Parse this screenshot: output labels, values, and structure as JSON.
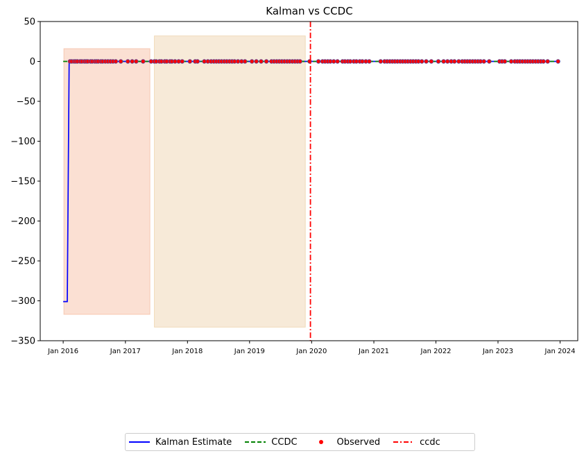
{
  "chart_data": {
    "type": "line",
    "title": "Kalman vs CCDC",
    "xlabel": "",
    "ylabel": "",
    "ylim": [
      -350,
      50
    ],
    "xlim": [
      "2015-08-19",
      "2024-04-14"
    ],
    "y_ticks": [
      50,
      0,
      -50,
      -100,
      -150,
      -200,
      -250,
      -300,
      -350
    ],
    "y_tick_labels": [
      "50",
      "0",
      "−50",
      "−100",
      "−150",
      "−200",
      "−250",
      "−300",
      "−350"
    ],
    "x_ticks": [
      "2016-01-01",
      "2017-01-01",
      "2018-01-01",
      "2019-01-01",
      "2020-01-01",
      "2021-01-01",
      "2022-01-01",
      "2023-01-01",
      "2024-01-01"
    ],
    "x_tick_labels": [
      "Jan 2016",
      "Jan 2017",
      "Jan 2018",
      "Jan 2019",
      "Jan 2020",
      "Jan 2021",
      "Jan 2022",
      "Jan 2023",
      "Jan 2024"
    ],
    "grid": false,
    "legend_position": "bottom-center",
    "series": [
      {
        "name": "Kalman Estimate",
        "style": "solid",
        "color": "#0000ff",
        "x": [
          "2016-01-01",
          "2016-01-25",
          "2016-01-25",
          "2016-02-05",
          "2024-01-01"
        ],
        "y": [
          -301,
          -301,
          -301,
          0,
          0
        ]
      },
      {
        "name": "CCDC",
        "style": "dashed",
        "color": "#008000",
        "x": [
          "2016-01-01",
          "2024-01-01"
        ],
        "y": [
          0,
          0
        ]
      }
    ],
    "observed": {
      "name": "Observed",
      "color": "#ff0000",
      "edge_color": "#5a4a9a",
      "value": 0,
      "dates": [
        "2016-02-10",
        "2016-02-20",
        "2016-03-05",
        "2016-03-15",
        "2016-03-25",
        "2016-04-10",
        "2016-04-20",
        "2016-05-05",
        "2016-05-15",
        "2016-05-25",
        "2016-06-10",
        "2016-06-20",
        "2016-07-05",
        "2016-07-15",
        "2016-07-25",
        "2016-08-10",
        "2016-08-20",
        "2016-09-05",
        "2016-09-20",
        "2016-10-05",
        "2016-10-20",
        "2016-11-05",
        "2016-12-05",
        "2017-01-15",
        "2017-02-10",
        "2017-03-05",
        "2017-04-15",
        "2017-06-01",
        "2017-06-20",
        "2017-07-01",
        "2017-07-20",
        "2017-08-01",
        "2017-08-20",
        "2017-09-01",
        "2017-09-20",
        "2017-10-01",
        "2017-10-20",
        "2017-11-10",
        "2017-12-01",
        "2018-01-15",
        "2018-02-15",
        "2018-03-01",
        "2018-04-10",
        "2018-05-01",
        "2018-05-20",
        "2018-06-05",
        "2018-06-20",
        "2018-07-05",
        "2018-07-20",
        "2018-08-05",
        "2018-08-20",
        "2018-09-05",
        "2018-09-20",
        "2018-10-05",
        "2018-10-25",
        "2018-11-15",
        "2018-12-05",
        "2019-01-15",
        "2019-02-10",
        "2019-03-10",
        "2019-04-10",
        "2019-05-10",
        "2019-05-25",
        "2019-06-10",
        "2019-06-25",
        "2019-07-10",
        "2019-07-25",
        "2019-08-10",
        "2019-08-25",
        "2019-09-10",
        "2019-09-25",
        "2019-10-10",
        "2019-10-25",
        "2019-12-20",
        "2020-02-10",
        "2020-03-05",
        "2020-03-20",
        "2020-04-05",
        "2020-04-20",
        "2020-05-10",
        "2020-06-01",
        "2020-07-01",
        "2020-07-15",
        "2020-08-01",
        "2020-08-15",
        "2020-09-05",
        "2020-09-20",
        "2020-10-10",
        "2020-10-25",
        "2020-11-15",
        "2020-12-05",
        "2021-02-10",
        "2021-03-05",
        "2021-03-20",
        "2021-04-05",
        "2021-04-20",
        "2021-05-05",
        "2021-05-20",
        "2021-06-05",
        "2021-06-20",
        "2021-07-05",
        "2021-07-20",
        "2021-08-05",
        "2021-08-20",
        "2021-09-05",
        "2021-09-20",
        "2021-10-10",
        "2021-11-05",
        "2021-12-05",
        "2022-01-15",
        "2022-02-15",
        "2022-03-10",
        "2022-04-01",
        "2022-04-20",
        "2022-05-15",
        "2022-06-05",
        "2022-06-20",
        "2022-07-05",
        "2022-07-20",
        "2022-08-05",
        "2022-08-20",
        "2022-09-05",
        "2022-09-20",
        "2022-10-10",
        "2022-11-10",
        "2023-01-10",
        "2023-01-25",
        "2023-02-10",
        "2023-03-20",
        "2023-04-10",
        "2023-04-25",
        "2023-05-10",
        "2023-05-25",
        "2023-06-10",
        "2023-06-25",
        "2023-07-10",
        "2023-07-25",
        "2023-08-10",
        "2023-08-25",
        "2023-09-10",
        "2023-09-25",
        "2023-10-20",
        "2023-12-20"
      ]
    },
    "breaks": [
      {
        "name": "ccdc",
        "style": "dashdot",
        "color": "#ff0000",
        "date": "2019-12-25"
      }
    ],
    "shaded_regions": [
      {
        "start": "2016-01-05",
        "end": "2017-05-25",
        "ymin": -317,
        "ymax": 16,
        "color": "#f4a582"
      },
      {
        "start": "2017-06-20",
        "end": "2019-11-25",
        "ymin": -333,
        "ymax": 32,
        "color": "#e8c48e"
      }
    ]
  },
  "legend": {
    "items": [
      {
        "label": "Kalman Estimate",
        "kind": "line-solid",
        "color": "#0000ff"
      },
      {
        "label": "CCDC",
        "kind": "line-dashed",
        "color": "#008000"
      },
      {
        "label": "Observed",
        "kind": "dot",
        "color": "#ff0000"
      },
      {
        "label": "ccdc",
        "kind": "line-dashdot",
        "color": "#ff0000"
      }
    ]
  }
}
